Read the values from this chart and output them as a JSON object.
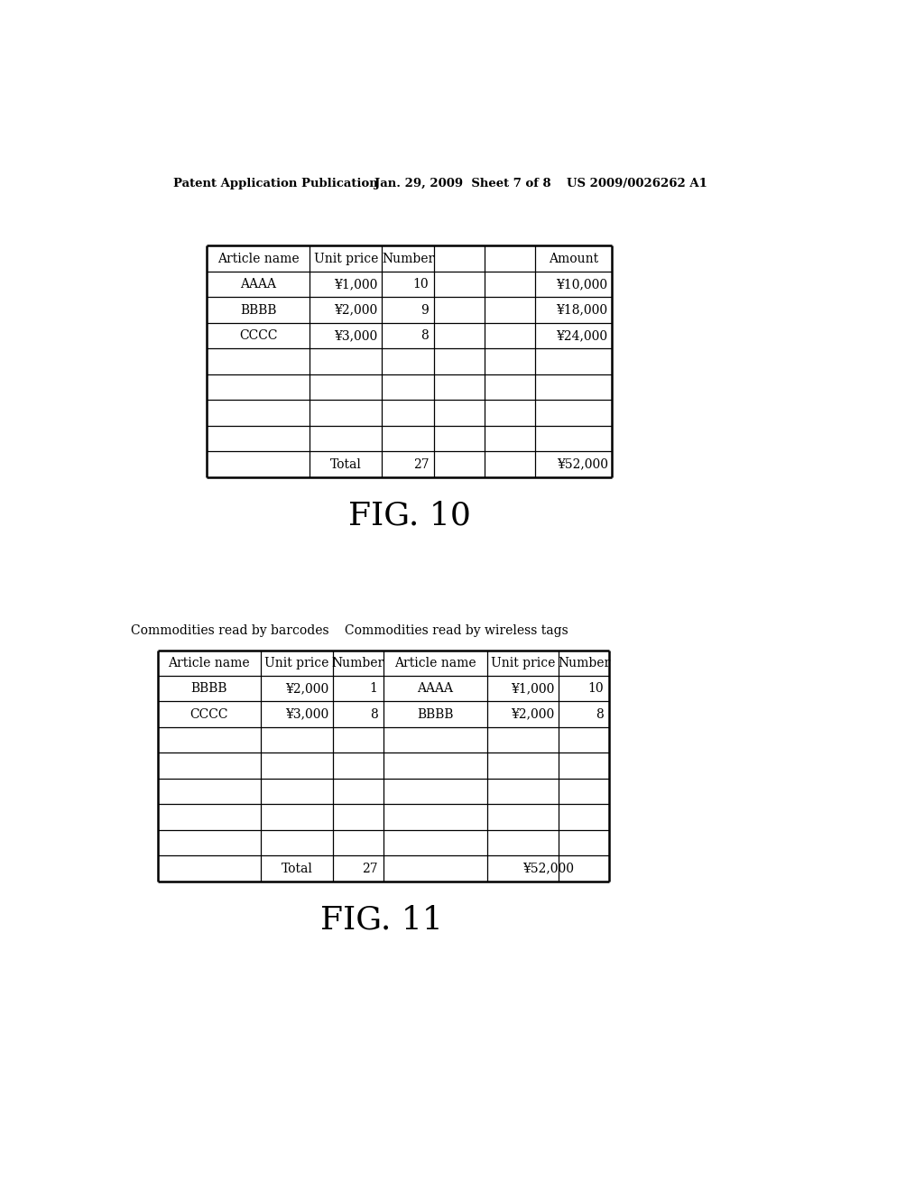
{
  "header_left": "Patent Application Publication",
  "header_mid": "Jan. 29, 2009  Sheet 7 of 8",
  "header_right": "US 2009/0026262 A1",
  "fig10_title": "FIG. 10",
  "fig11_title": "FIG. 11",
  "fig11_label_left": "Commodities read by barcodes",
  "fig11_label_right": "Commodities read by wireless tags",
  "fig10_headers": [
    "Article name",
    "Unit price",
    "Number",
    "",
    "",
    "Amount"
  ],
  "fig10_data_rows": [
    [
      "AAAA",
      "¥1,000",
      "10",
      "",
      "",
      "¥10,000"
    ],
    [
      "BBBB",
      "¥2,000",
      "9",
      "",
      "",
      "¥18,000"
    ],
    [
      "CCCC",
      "¥3,000",
      "8",
      "",
      "",
      "¥24,000"
    ],
    [
      "",
      "",
      "",
      "",
      "",
      ""
    ],
    [
      "",
      "",
      "",
      "",
      "",
      ""
    ],
    [
      "",
      "",
      "",
      "",
      "",
      ""
    ],
    [
      "",
      "",
      "",
      "",
      "",
      ""
    ],
    [
      "",
      "Total",
      "27",
      "",
      "",
      "¥52,000"
    ]
  ],
  "fig11_left_headers": [
    "Article name",
    "Unit price",
    "Number"
  ],
  "fig11_right_headers": [
    "Article name",
    "Unit price",
    "Number"
  ],
  "fig11_left_rows": [
    [
      "BBBB",
      "¥2,000",
      "1"
    ],
    [
      "CCCC",
      "¥3,000",
      "8"
    ],
    [
      "",
      "",
      ""
    ],
    [
      "",
      "",
      ""
    ],
    [
      "",
      "",
      ""
    ],
    [
      "",
      "",
      ""
    ],
    [
      "",
      "",
      ""
    ],
    [
      "",
      "Total",
      "27"
    ]
  ],
  "fig11_right_rows": [
    [
      "AAAA",
      "¥1,000",
      "10"
    ],
    [
      "BBBB",
      "¥2,000",
      "8"
    ],
    [
      "",
      "",
      ""
    ],
    [
      "",
      "",
      ""
    ],
    [
      "",
      "",
      ""
    ],
    [
      "",
      "",
      ""
    ],
    [
      "",
      "",
      ""
    ],
    [
      "",
      "¥52,000",
      ""
    ]
  ],
  "bg_color": "#ffffff",
  "text_color": "#000000",
  "line_color": "#000000"
}
